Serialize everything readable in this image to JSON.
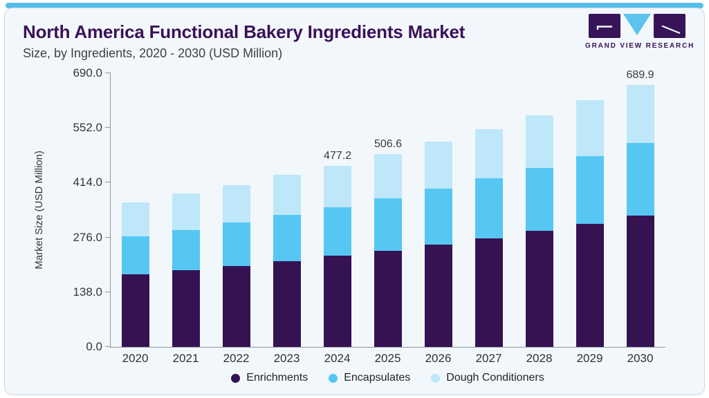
{
  "header": {
    "title": "North America Functional Bakery Ingredients Market",
    "subtitle": "Size, by Ingredients, 2020 - 2030 (USD Million)"
  },
  "logo": {
    "brand": "GRAND VIEW RESEARCH"
  },
  "colors": {
    "accent_bar": "#54BDE9",
    "card_background": "#F2F7FB",
    "card_border": "#CBD9E3",
    "title_purple": "#3A1159",
    "axis_line": "#90959B",
    "logo_purple": "#371457",
    "logo_triangle_blue": "#5BC4EE"
  },
  "chart_data": {
    "type": "bar",
    "stacked": true,
    "title": "North America Functional Bakery Ingredients Market Size, by Ingredients, 2020 - 2030 (USD Million)",
    "xlabel": "",
    "ylabel": "Market Size (USD Million)",
    "ylim": [
      0,
      690
    ],
    "yticks": [
      0,
      138,
      276,
      414,
      552,
      690
    ],
    "ytick_labels": [
      "0.0",
      "138.0",
      "276.0",
      "414.0",
      "552.0",
      "690.0"
    ],
    "grid": false,
    "legend_position": "bottom",
    "categories": [
      "2020",
      "2021",
      "2022",
      "2023",
      "2024",
      "2025",
      "2026",
      "2027",
      "2028",
      "2029",
      "2030"
    ],
    "series": [
      {
        "name": "Enrichments",
        "color": "#351352",
        "values": [
          190.5,
          202.0,
          213.6,
          225.1,
          239.6,
          252.9,
          269.2,
          285.0,
          305.0,
          324.5,
          345.6
        ]
      },
      {
        "name": "Encapsulates",
        "color": "#56C7F2",
        "values": [
          100.0,
          105.4,
          113.8,
          122.3,
          128.5,
          138.1,
          148.0,
          158.2,
          166.0,
          177.4,
          191.6
        ]
      },
      {
        "name": "Dough Conditioners",
        "color": "#BEE7F9",
        "values": [
          90.4,
          96.4,
          98.9,
          104.9,
          109.1,
          115.6,
          122.9,
          129.1,
          137.6,
          146.7,
          152.7
        ]
      }
    ],
    "annotations": {
      "2024": "477.2",
      "2025": "506.6",
      "2030": "689.9"
    }
  }
}
